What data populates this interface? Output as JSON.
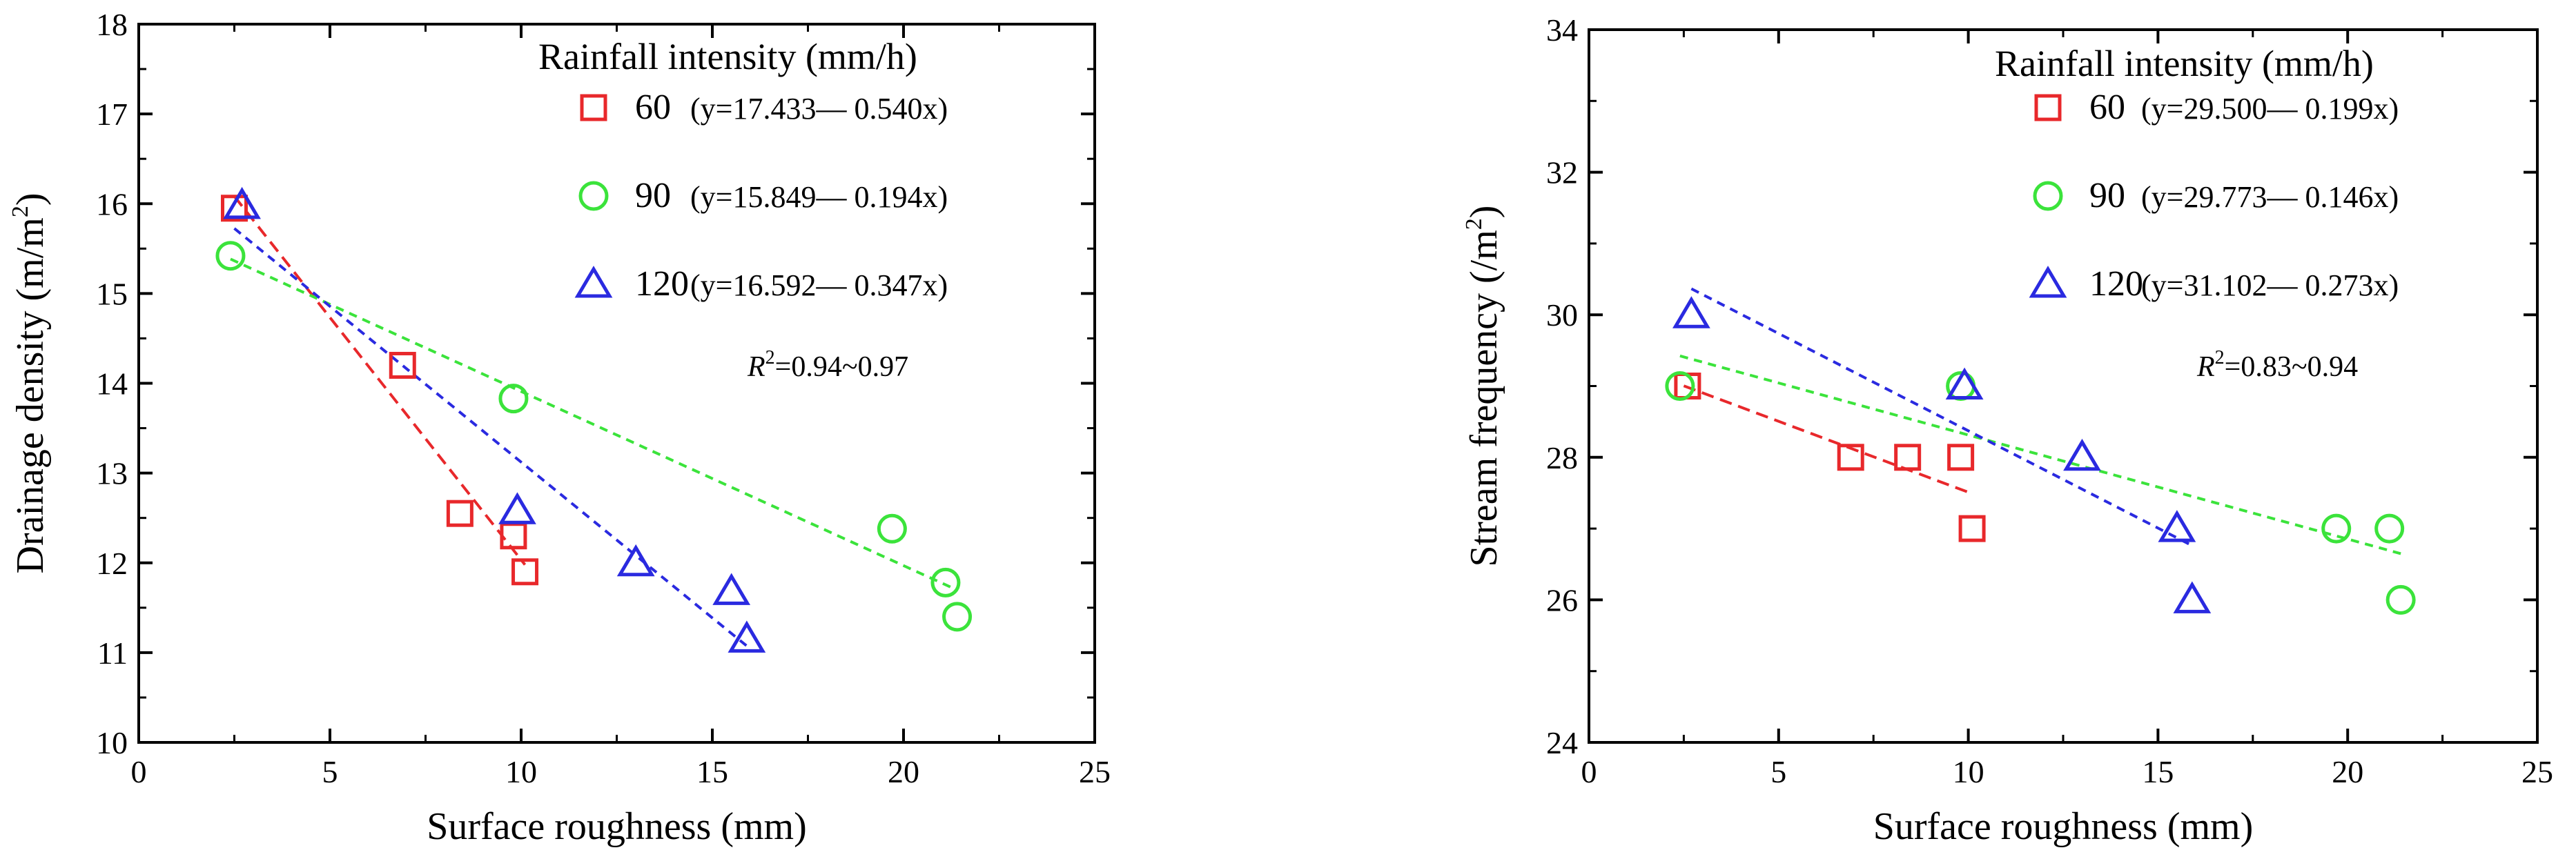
{
  "chart_data": [
    {
      "type": "scatter",
      "xlabel": "Surface roughness (mm)",
      "ylabel_main": "Drainage density (m/m",
      "ylabel_sup": "2",
      "ylabel_tail": ")",
      "xlim": [
        0,
        25
      ],
      "ylim": [
        10,
        18
      ],
      "xticks": [
        0,
        5,
        10,
        15,
        20,
        25
      ],
      "yticks": [
        10,
        11,
        12,
        13,
        14,
        15,
        16,
        17,
        18
      ],
      "grid": false,
      "legend_title": "Rainfall intensity (mm/h)",
      "r2_label": "R",
      "r2_sup": "2",
      "r2_value": "=0.94~0.97",
      "series": [
        {
          "name": "60",
          "marker": "square",
          "color": "#e8282b",
          "equation": "(y=17.433— 0.540x)",
          "x": [
            2.5,
            6.9,
            8.4,
            9.8,
            10.1
          ],
          "y": [
            15.95,
            14.2,
            12.55,
            12.3,
            11.9
          ],
          "fit": {
            "intercept": 17.433,
            "slope": -0.54,
            "x_range": [
              2.5,
              10.1
            ]
          }
        },
        {
          "name": "90",
          "marker": "circle",
          "color": "#3be33b",
          "equation": "(y=15.849— 0.194x)",
          "x": [
            2.4,
            9.8,
            19.7,
            21.1,
            21.4
          ],
          "y": [
            15.42,
            13.83,
            12.38,
            11.78,
            11.4
          ],
          "fit": {
            "intercept": 15.849,
            "slope": -0.194,
            "x_range": [
              2.4,
              21.4
            ]
          }
        },
        {
          "name": "120",
          "marker": "triangle",
          "color": "#2a2ae0",
          "equation": "(y=16.592— 0.347x)",
          "x": [
            2.7,
            9.9,
            13.0,
            15.5,
            15.9
          ],
          "y": [
            15.98,
            12.58,
            12.0,
            11.68,
            11.15
          ],
          "fit": {
            "intercept": 16.592,
            "slope": -0.347,
            "x_range": [
              2.5,
              15.9
            ]
          }
        }
      ]
    },
    {
      "type": "scatter",
      "xlabel": "Surface roughness (mm)",
      "ylabel_main": "Stream frequency (/m",
      "ylabel_sup": "2",
      "ylabel_tail": ")",
      "xlim": [
        0,
        25
      ],
      "ylim": [
        24,
        34
      ],
      "xticks": [
        0,
        5,
        10,
        15,
        20,
        25
      ],
      "yticks": [
        24,
        26,
        28,
        30,
        32,
        34
      ],
      "grid": false,
      "legend_title": "Rainfall intensity (mm/h)",
      "r2_label": "R",
      "r2_sup": "2",
      "r2_value": "=0.83~0.94",
      "series": [
        {
          "name": "60",
          "marker": "square",
          "color": "#e8282b",
          "equation": "(y=29.500— 0.199x)",
          "x": [
            2.6,
            6.9,
            8.4,
            9.8,
            10.1
          ],
          "y": [
            29.0,
            28.0,
            28.0,
            28.0,
            27.0
          ],
          "fit": {
            "intercept": 29.5,
            "slope": -0.199,
            "x_range": [
              2.5,
              10.1
            ]
          }
        },
        {
          "name": "90",
          "marker": "circle",
          "color": "#3be33b",
          "equation": "(y=29.773— 0.146x)",
          "x": [
            2.4,
            9.8,
            19.7,
            21.1,
            21.4
          ],
          "y": [
            29.0,
            29.0,
            27.0,
            27.0,
            26.0
          ],
          "fit": {
            "intercept": 29.773,
            "slope": -0.146,
            "x_range": [
              2.4,
              21.4
            ]
          }
        },
        {
          "name": "120",
          "marker": "triangle",
          "color": "#2a2ae0",
          "equation": "(y=31.102— 0.273x)",
          "x": [
            2.7,
            9.9,
            13.0,
            15.5,
            15.9
          ],
          "y": [
            30.0,
            29.0,
            28.0,
            27.0,
            26.0
          ],
          "fit": {
            "intercept": 31.102,
            "slope": -0.273,
            "x_range": [
              2.7,
              15.9
            ]
          }
        }
      ]
    }
  ]
}
